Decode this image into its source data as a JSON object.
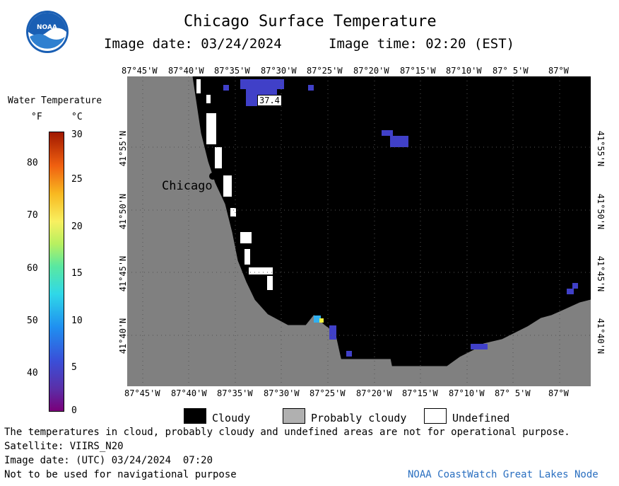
{
  "header": {
    "title": "Chicago Surface Temperature",
    "image_date": "Image date: 03/24/2024",
    "image_time": "Image time: 02:20 (EST)"
  },
  "logo": {
    "text": "NOAA"
  },
  "colorbar": {
    "title": "Water Temperature",
    "unit_f": "°F",
    "unit_c": "°C",
    "f_ticks": [
      "80",
      "70",
      "60",
      "50",
      "40"
    ],
    "c_ticks": [
      "30",
      "25",
      "20",
      "15",
      "10",
      "5",
      "0"
    ]
  },
  "map": {
    "top_lon_labels": [
      "87°45'W",
      "87°40'W",
      "87°35'W",
      "87°30'W",
      "87°25'W",
      "87°20'W",
      "87°15'W",
      "87°10'W",
      "87° 5'W",
      "87°W"
    ],
    "bottom_lon_labels": [
      "87°45'W",
      "87°40'W",
      "87°35'W",
      "87°30'W",
      "87°25'W",
      "87°20'W",
      "87°15'W",
      "87°10'W",
      "87° 5'W",
      "87°W"
    ],
    "lat_labels": [
      "41°55'N",
      "41°50'N",
      "41°45'N",
      "41°40'N"
    ],
    "city": "Chicago",
    "temp_label": "37.4",
    "colors": {
      "land": "#808080",
      "cloud": "#000000",
      "undefined": "#ffffff",
      "cold_water": "#4040c8"
    }
  },
  "legend": {
    "cloudy": "Cloudy",
    "probably_cloudy": "Probably cloudy",
    "undefined": "Undefined"
  },
  "footer": {
    "disclaimer": "The temperatures in cloud, probably cloudy and undefined areas are not for operational purpose.",
    "satellite": "Satellite: VIIRS_N20",
    "utc_date": "Image date: (UTC) 03/24/2024  07:20",
    "nav_warning": "Not to be used for navigational purpose",
    "credit": "NOAA CoastWatch Great Lakes Node"
  }
}
